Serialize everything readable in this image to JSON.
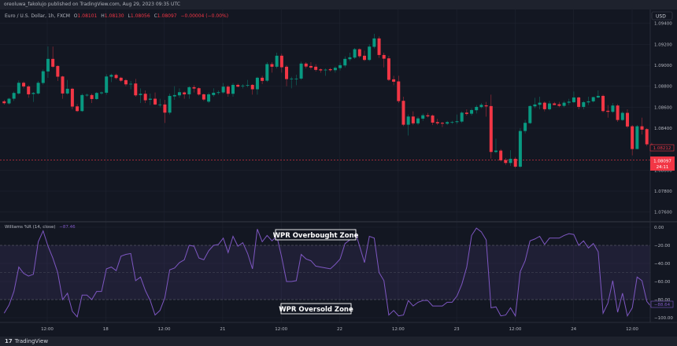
{
  "publisher_line": "oreoluwa_fakolujo published on TradingView.com, Aug 29, 2023 09:35 UTC",
  "legend": {
    "symbol": "Euro / U.S. Dollar, 1h, FXCM",
    "o_label": "O",
    "o": "1.08101",
    "h_label": "H",
    "h": "1.08130",
    "l_label": "L",
    "l": "1.08056",
    "c_label": "C",
    "c": "1.08097",
    "change": "−0.00004 (−0.00%)"
  },
  "currency_button": "USD",
  "footer_logo": "TradingView",
  "colors": {
    "up": "#089981",
    "down": "#f23645",
    "wpr_line": "#7e57c2",
    "background": "#131722",
    "grid": "#1f2330"
  },
  "chart_data": [
    {
      "type": "candlestick",
      "title": "Euro / U.S. Dollar, 1h, FXCM",
      "ylim": [
        1.0749,
        1.0955
      ],
      "y_ticks": [
        "1.09400",
        "1.09200",
        "1.09000",
        "1.08800",
        "1.08600",
        "1.08400",
        "1.08000",
        "1.07800",
        "1.07600"
      ],
      "x_ticks": [
        "12:00",
        "18",
        "12:00",
        "21",
        "12:00",
        "22",
        "12:00",
        "23",
        "12:00",
        "24",
        "12:00"
      ],
      "grid": true,
      "current_price": {
        "value": 1.08097,
        "label": "1.08097",
        "countdown": "24:11"
      },
      "prev_close_label": {
        "value": 1.08212,
        "label": "1.08212"
      },
      "candles_ohlc": [
        [
          1.08656,
          1.0867,
          1.08625,
          1.08638
        ],
        [
          1.08636,
          1.0869,
          1.08625,
          1.08681
        ],
        [
          1.08681,
          1.0875,
          1.0866,
          1.08736
        ],
        [
          1.08731,
          1.08855,
          1.0872,
          1.08833
        ],
        [
          1.08833,
          1.08845,
          1.0878,
          1.08798
        ],
        [
          1.08798,
          1.0881,
          1.0869,
          1.08723
        ],
        [
          1.08726,
          1.08745,
          1.0865,
          1.08736
        ],
        [
          1.08731,
          1.0885,
          1.0872,
          1.08833
        ],
        [
          1.08831,
          1.0896,
          1.08815,
          1.08943
        ],
        [
          1.08941,
          1.0918,
          1.0888,
          1.09061
        ],
        [
          1.09061,
          1.09178,
          1.08975,
          1.08986
        ],
        [
          1.08993,
          1.09,
          1.0885,
          1.08891
        ],
        [
          1.08893,
          1.089,
          1.0868,
          1.08731
        ],
        [
          1.08731,
          1.0886,
          1.0872,
          1.08776
        ],
        [
          1.08776,
          1.08785,
          1.0858,
          1.08606
        ],
        [
          1.08608,
          1.0863,
          1.08555,
          1.08563
        ],
        [
          1.08563,
          1.0873,
          1.08555,
          1.08716
        ],
        [
          1.08718,
          1.0873,
          1.087,
          1.08718
        ],
        [
          1.08716,
          1.0873,
          1.0864,
          1.08678
        ],
        [
          1.08678,
          1.08745,
          1.0867,
          1.08736
        ],
        [
          1.08733,
          1.0875,
          1.0872,
          1.08741
        ],
        [
          1.08738,
          1.08915,
          1.0872,
          1.08893
        ],
        [
          1.08891,
          1.0892,
          1.0884,
          1.08908
        ],
        [
          1.08908,
          1.0892,
          1.08865,
          1.08878
        ],
        [
          1.08881,
          1.0889,
          1.0884,
          1.08853
        ],
        [
          1.08858,
          1.0887,
          1.088,
          1.08818
        ],
        [
          1.08823,
          1.0885,
          1.0877,
          1.08823
        ],
        [
          1.08826,
          1.0887,
          1.087,
          1.08713
        ],
        [
          1.08716,
          1.0878,
          1.0864,
          1.08728
        ],
        [
          1.08728,
          1.0876,
          1.0864,
          1.08666
        ],
        [
          1.08671,
          1.0873,
          1.0862,
          1.08681
        ],
        [
          1.08681,
          1.0874,
          1.0862,
          1.08626
        ],
        [
          1.08626,
          1.0868,
          1.086,
          1.08626
        ],
        [
          1.08626,
          1.0867,
          1.0845,
          1.08548
        ],
        [
          1.08548,
          1.0873,
          1.0853,
          1.08708
        ],
        [
          1.08703,
          1.088,
          1.0867,
          1.08716
        ],
        [
          1.08713,
          1.0878,
          1.0869,
          1.08743
        ],
        [
          1.08741,
          1.0875,
          1.0868,
          1.08723
        ],
        [
          1.08723,
          1.088,
          1.0868,
          1.08791
        ],
        [
          1.08791,
          1.0881,
          1.0874,
          1.08778
        ],
        [
          1.08781,
          1.0879,
          1.0871,
          1.08721
        ],
        [
          1.08723,
          1.0873,
          1.0866,
          1.08673
        ],
        [
          1.08653,
          1.0874,
          1.0864,
          1.08723
        ],
        [
          1.08716,
          1.0878,
          1.087,
          1.08738
        ],
        [
          1.08736,
          1.0876,
          1.0872,
          1.08743
        ],
        [
          1.08741,
          1.0883,
          1.0873,
          1.08796
        ],
        [
          1.08796,
          1.0881,
          1.087,
          1.08728
        ],
        [
          1.08728,
          1.0883,
          1.087,
          1.08813
        ],
        [
          1.08813,
          1.08825,
          1.0879,
          1.08796
        ],
        [
          1.08806,
          1.0882,
          1.0878,
          1.08806
        ],
        [
          1.08811,
          1.0886,
          1.0879,
          1.08811
        ],
        [
          1.08813,
          1.0882,
          1.0872,
          1.08771
        ],
        [
          1.08771,
          1.0889,
          1.0872,
          1.08881
        ],
        [
          1.08881,
          1.089,
          1.0882,
          1.08851
        ],
        [
          1.08853,
          1.0903,
          1.0884,
          1.09011
        ],
        [
          1.09011,
          1.0903,
          1.0893,
          1.08986
        ],
        [
          1.08986,
          1.0912,
          1.0897,
          1.09091
        ],
        [
          1.09091,
          1.0911,
          1.0893,
          1.08981
        ],
        [
          1.08986,
          1.09,
          1.088,
          1.08868
        ],
        [
          1.08873,
          1.0889,
          1.0878,
          1.08873
        ],
        [
          1.08873,
          1.0891,
          1.0881,
          1.08873
        ],
        [
          1.08873,
          1.09035,
          1.0886,
          1.09016
        ],
        [
          1.09016,
          1.0903,
          1.0897,
          1.08988
        ],
        [
          1.08993,
          1.0903,
          1.0896,
          1.08978
        ],
        [
          1.08986,
          1.0901,
          1.0894,
          1.08956
        ],
        [
          1.08961,
          1.0897,
          1.0893,
          1.08951
        ],
        [
          1.08958,
          1.0897,
          1.089,
          1.08958
        ],
        [
          1.08963,
          1.08975,
          1.0894,
          1.08953
        ],
        [
          1.08953,
          1.0899,
          1.0893,
          1.08976
        ],
        [
          1.08973,
          1.09025,
          1.0895,
          1.09001
        ],
        [
          1.08998,
          1.09085,
          1.0898,
          1.09061
        ],
        [
          1.09058,
          1.0912,
          1.0904,
          1.09076
        ],
        [
          1.09073,
          1.09165,
          1.0906,
          1.09153
        ],
        [
          1.09153,
          1.0916,
          1.0907,
          1.09086
        ],
        [
          1.09091,
          1.0914,
          1.0904,
          1.09051
        ],
        [
          1.09051,
          1.092,
          1.0904,
          1.09178
        ],
        [
          1.09176,
          1.093,
          1.0916,
          1.09256
        ],
        [
          1.09256,
          1.09275,
          1.0907,
          1.09098
        ],
        [
          1.09098,
          1.0912,
          1.0898,
          1.09063
        ],
        [
          1.09066,
          1.0909,
          1.0885,
          1.08861
        ],
        [
          1.08866,
          1.089,
          1.0881,
          1.08843
        ],
        [
          1.08846,
          1.089,
          1.0864,
          1.08658
        ],
        [
          1.08661,
          1.087,
          1.0842,
          1.08433
        ],
        [
          1.08433,
          1.0853,
          1.0833,
          1.08511
        ],
        [
          1.08511,
          1.0856,
          1.0843,
          1.08446
        ],
        [
          1.08446,
          1.0851,
          1.0843,
          1.08493
        ],
        [
          1.08491,
          1.0854,
          1.0847,
          1.08523
        ],
        [
          1.08523,
          1.08545,
          1.085,
          1.08513
        ],
        [
          1.08521,
          1.0853,
          1.0843,
          1.08453
        ],
        [
          1.08458,
          1.0849,
          1.0843,
          1.08446
        ],
        [
          1.08451,
          1.0846,
          1.0841,
          1.08443
        ],
        [
          1.08443,
          1.0847,
          1.0843,
          1.08458
        ],
        [
          1.08458,
          1.0847,
          1.0844,
          1.08458
        ],
        [
          1.08458,
          1.0853,
          1.0844,
          1.08466
        ],
        [
          1.08463,
          1.0856,
          1.0845,
          1.08548
        ],
        [
          1.08548,
          1.0858,
          1.0852,
          1.08536
        ],
        [
          1.08538,
          1.0859,
          1.0852,
          1.08573
        ],
        [
          1.08571,
          1.0862,
          1.0854,
          1.08603
        ],
        [
          1.08601,
          1.0864,
          1.0859,
          1.08623
        ],
        [
          1.08618,
          1.0865,
          1.0851,
          1.08608
        ],
        [
          1.08611,
          1.0872,
          1.0811,
          1.08173
        ],
        [
          1.08173,
          1.083,
          1.0816,
          1.08186
        ],
        [
          1.08186,
          1.082,
          1.0808,
          1.08093
        ],
        [
          1.08096,
          1.08115,
          1.0805,
          1.08068
        ],
        [
          1.08068,
          1.0819,
          1.0804,
          1.08108
        ],
        [
          1.08108,
          1.08125,
          1.0802,
          1.08033
        ],
        [
          1.08033,
          1.084,
          1.0802,
          1.08373
        ],
        [
          1.08373,
          1.0848,
          1.0835,
          1.08451
        ],
        [
          1.08448,
          1.0862,
          1.0844,
          1.08611
        ],
        [
          1.08608,
          1.0869,
          1.0859,
          1.08626
        ],
        [
          1.08623,
          1.087,
          1.0858,
          1.08643
        ],
        [
          1.08643,
          1.08655,
          1.0856,
          1.08581
        ],
        [
          1.08581,
          1.0866,
          1.0857,
          1.08636
        ],
        [
          1.08636,
          1.0865,
          1.0862,
          1.08621
        ],
        [
          1.08628,
          1.0865,
          1.086,
          1.08613
        ],
        [
          1.08613,
          1.0866,
          1.086,
          1.08643
        ],
        [
          1.08643,
          1.0868,
          1.0862,
          1.08653
        ],
        [
          1.08648,
          1.0875,
          1.0864,
          1.08693
        ],
        [
          1.08693,
          1.087,
          1.0858,
          1.08603
        ],
        [
          1.08603,
          1.0866,
          1.0858,
          1.08648
        ],
        [
          1.08646,
          1.087,
          1.0862,
          1.08656
        ],
        [
          1.08656,
          1.087,
          1.08645,
          1.08696
        ],
        [
          1.08693,
          1.0876,
          1.08685,
          1.08708
        ],
        [
          1.08708,
          1.0872,
          1.0855,
          1.08563
        ],
        [
          1.08566,
          1.0862,
          1.085,
          1.08556
        ],
        [
          1.08556,
          1.0864,
          1.08545,
          1.08616
        ],
        [
          1.08616,
          1.0863,
          1.0846,
          1.08478
        ],
        [
          1.08478,
          1.0856,
          1.0847,
          1.08546
        ],
        [
          1.08546,
          1.0858,
          1.084,
          1.08416
        ],
        [
          1.08418,
          1.0843,
          1.0814,
          1.08201
        ],
        [
          1.08201,
          1.0843,
          1.082,
          1.08418
        ],
        [
          1.08418,
          1.085,
          1.0834,
          1.08386
        ],
        [
          1.08391,
          1.084,
          1.0823,
          1.08246
        ],
        [
          1.08246,
          1.0826,
          1.0819,
          1.08212
        ]
      ]
    },
    {
      "type": "line",
      "title": "Williams %R (14, close)",
      "legend_value": "−87.46",
      "last_value_label": "−88.64",
      "ylim": [
        -100,
        0
      ],
      "y_ticks": [
        "0.00",
        "−20.00",
        "−40.00",
        "−60.00",
        "−80.00",
        "−100.00"
      ],
      "levels": {
        "overbought": -20,
        "middle": -50,
        "oversold": -80
      },
      "annotations": {
        "overbought": "WPR Overbought Zone",
        "oversold": "WPR Oversold Zone"
      },
      "values": [
        -95,
        -86,
        -71,
        -44,
        -51,
        -54,
        -52,
        -16,
        -4,
        -21,
        -34,
        -50,
        -80,
        -73,
        -93,
        -99,
        -75,
        -75,
        -80,
        -71,
        -71,
        -46,
        -44,
        -48,
        -32,
        -30,
        -29,
        -59,
        -55,
        -70,
        -81,
        -97,
        -92,
        -78,
        -47,
        -45,
        -39,
        -36,
        -20,
        -21,
        -34,
        -36,
        -26,
        -20,
        -19,
        -12,
        -28,
        -10,
        -21,
        -17,
        -29,
        -46,
        -2,
        -16,
        -9,
        -15,
        -10,
        -33,
        -60,
        -60,
        -59,
        -30,
        -35,
        -37,
        -43,
        -44,
        -45,
        -46,
        -41,
        -35,
        -18,
        -14,
        -3,
        -21,
        -39,
        -10,
        -12,
        -50,
        -59,
        -97,
        -92,
        -98,
        -97,
        -81,
        -87,
        -83,
        -81,
        -81,
        -87,
        -87,
        -87,
        -83,
        -83,
        -76,
        -63,
        -44,
        -9,
        -1,
        -5,
        -14,
        -89,
        -88,
        -98,
        -97,
        -89,
        -98,
        -49,
        -37,
        -15,
        -13,
        -10,
        -19,
        -12,
        -12,
        -12,
        -9,
        -7,
        -8,
        -20,
        -15,
        -23,
        -18,
        -27,
        -95,
        -84,
        -59,
        -94,
        -73,
        -98,
        -89,
        -55,
        -59,
        -82,
        -88.64
      ]
    }
  ]
}
